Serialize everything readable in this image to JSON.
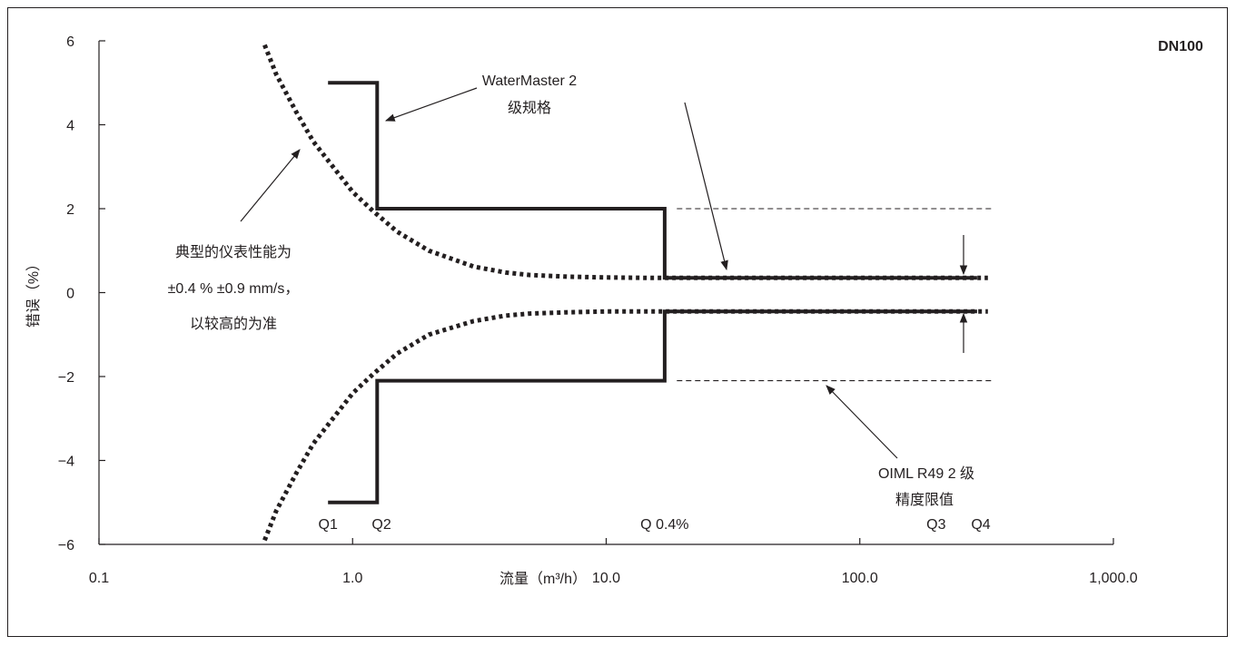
{
  "chart_data": {
    "type": "line",
    "x_scale": "log",
    "xlim": [
      0.1,
      1000
    ],
    "ylim": [
      -6,
      6
    ],
    "xlabel": "流量（m³/h）",
    "ylabel": "错误（%）",
    "x_ticks": [
      {
        "value": 0.1,
        "label": "0.1"
      },
      {
        "value": 1,
        "label": "1.0"
      },
      {
        "value": 10,
        "label": "10.0"
      },
      {
        "value": 100,
        "label": "100.0"
      },
      {
        "value": 1000,
        "label": "1,000.0"
      }
    ],
    "y_ticks": [
      {
        "value": 6,
        "label": "6"
      },
      {
        "value": 4,
        "label": "4"
      },
      {
        "value": 2,
        "label": "2"
      },
      {
        "value": 0,
        "label": "0"
      },
      {
        "value": -2,
        "label": "−2"
      },
      {
        "value": -4,
        "label": "−4"
      },
      {
        "value": -6,
        "label": "−6"
      }
    ],
    "corner_label": "DN100",
    "series": [
      {
        "role": "typical-upper",
        "style": "dotted",
        "x": [
          0.45,
          0.5,
          0.6,
          0.7,
          0.8,
          1.0,
          1.2,
          1.5,
          2,
          3,
          4,
          5,
          7,
          10,
          15,
          20,
          30,
          50,
          100,
          200,
          320
        ],
        "y": [
          5.9,
          5.2,
          4.3,
          3.6,
          3.15,
          2.4,
          1.95,
          1.45,
          1.0,
          0.62,
          0.48,
          0.42,
          0.38,
          0.36,
          0.35,
          0.35,
          0.35,
          0.35,
          0.35,
          0.35,
          0.35
        ]
      },
      {
        "role": "typical-lower",
        "style": "dotted",
        "x": [
          0.45,
          0.5,
          0.6,
          0.7,
          0.8,
          1.0,
          1.2,
          1.5,
          2,
          3,
          4,
          5,
          7,
          10,
          15,
          20,
          30,
          50,
          100,
          200,
          320
        ],
        "y": [
          -5.9,
          -5.2,
          -4.3,
          -3.6,
          -3.15,
          -2.4,
          -1.95,
          -1.45,
          -1.0,
          -0.68,
          -0.55,
          -0.5,
          -0.47,
          -0.45,
          -0.45,
          -0.45,
          -0.45,
          -0.45,
          -0.45,
          -0.45,
          -0.45
        ]
      },
      {
        "role": "spec-upper",
        "style": "solid",
        "x": [
          0.8,
          1.25,
          1.25,
          17,
          17,
          290
        ],
        "y": [
          5,
          5,
          2,
          2,
          0.35,
          0.35
        ]
      },
      {
        "role": "spec-lower",
        "style": "solid",
        "x": [
          0.8,
          1.25,
          1.25,
          17,
          17,
          290
        ],
        "y": [
          -5,
          -5,
          -2.1,
          -2.1,
          -0.45,
          -0.45
        ]
      },
      {
        "role": "oiml-upper",
        "style": "dashed",
        "x": [
          19,
          330
        ],
        "y": [
          2,
          2
        ]
      },
      {
        "role": "oiml-lower",
        "style": "dashed",
        "x": [
          19,
          330
        ],
        "y": [
          -2.1,
          -2.1
        ]
      }
    ],
    "flow_markers": [
      {
        "label": "Q1",
        "x": 0.8
      },
      {
        "label": "Q2",
        "x": 1.3
      },
      {
        "label": "Q 0.4%",
        "x": 17
      },
      {
        "label": "Q3",
        "x": 200
      },
      {
        "label": "Q4",
        "x": 300
      }
    ],
    "annotations": {
      "spec": [
        "WaterMaster 2",
        "级规格"
      ],
      "typical": [
        "典型的仪表性能为",
        "±0.4 % ±0.9 mm/s，",
        "以较高的为准"
      ],
      "oiml": [
        "OIML R49 2 级",
        "精度限值"
      ]
    }
  }
}
